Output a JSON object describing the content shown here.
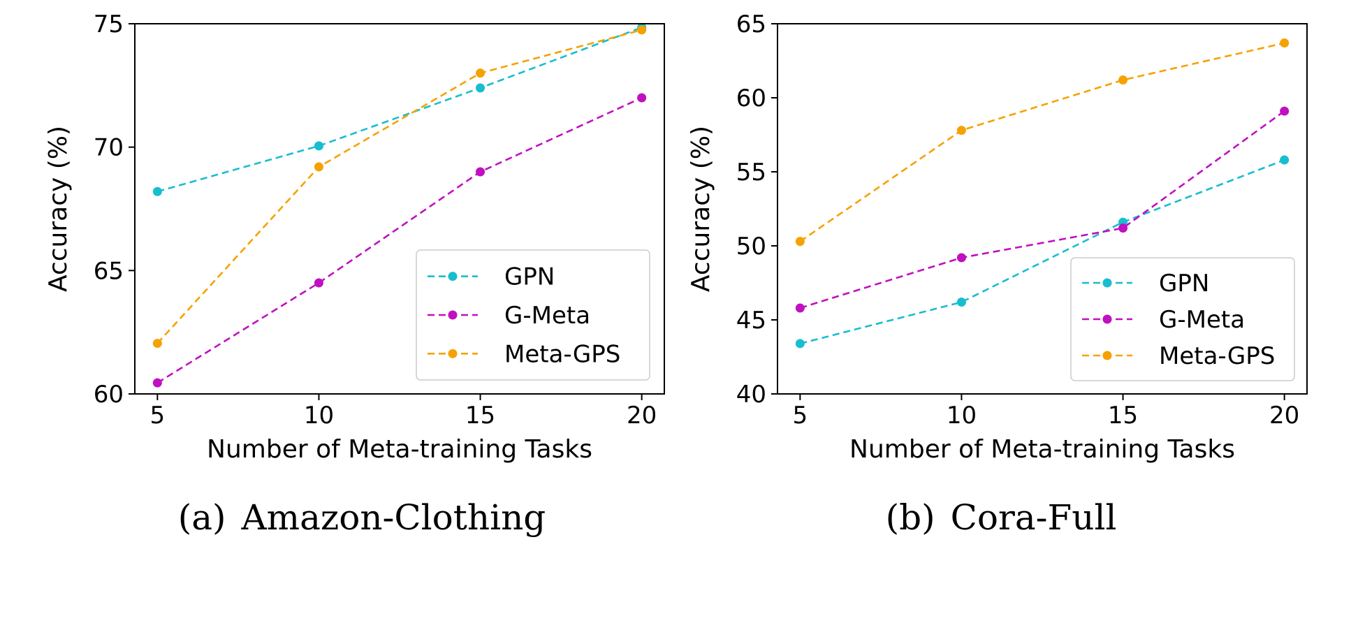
{
  "chart_data": [
    {
      "type": "line",
      "xlabel": "Number of Meta-training Tasks",
      "ylabel": "Accuracy (%)",
      "x": [
        5,
        10,
        15,
        20
      ],
      "xlim": [
        4.3,
        20.7
      ],
      "ylim": [
        60,
        75
      ],
      "yticks": [
        60,
        65,
        70,
        75
      ],
      "xticks": [
        5,
        10,
        15,
        20
      ],
      "legend_position": "lower-right",
      "grid": false,
      "series": [
        {
          "name": "GPN",
          "color": "#17becf",
          "values": [
            68.2,
            70.05,
            72.4,
            74.85
          ]
        },
        {
          "name": "G-Meta",
          "color": "#c010c0",
          "values": [
            60.45,
            64.5,
            69.0,
            72.0
          ]
        },
        {
          "name": "Meta-GPS",
          "color": "#f5a200",
          "values": [
            62.05,
            69.2,
            73.0,
            74.75
          ]
        }
      ],
      "caption": {
        "tag": "(a)",
        "text": "Amazon-Clothing"
      }
    },
    {
      "type": "line",
      "xlabel": "Number of Meta-training Tasks",
      "ylabel": "Accuracy (%)",
      "x": [
        5,
        10,
        15,
        20
      ],
      "xlim": [
        4.3,
        20.7
      ],
      "ylim": [
        40,
        65
      ],
      "yticks": [
        40,
        45,
        50,
        55,
        60,
        65
      ],
      "xticks": [
        5,
        10,
        15,
        20
      ],
      "legend_position": "lower-right",
      "grid": false,
      "series": [
        {
          "name": "GPN",
          "color": "#17becf",
          "values": [
            43.4,
            46.2,
            51.6,
            55.8
          ]
        },
        {
          "name": "G-Meta",
          "color": "#c010c0",
          "values": [
            45.8,
            49.2,
            51.2,
            59.1
          ]
        },
        {
          "name": "Meta-GPS",
          "color": "#f5a200",
          "values": [
            50.3,
            57.8,
            61.2,
            63.7
          ]
        }
      ],
      "caption": {
        "tag": "(b)",
        "text": "Cora-Full"
      }
    }
  ]
}
